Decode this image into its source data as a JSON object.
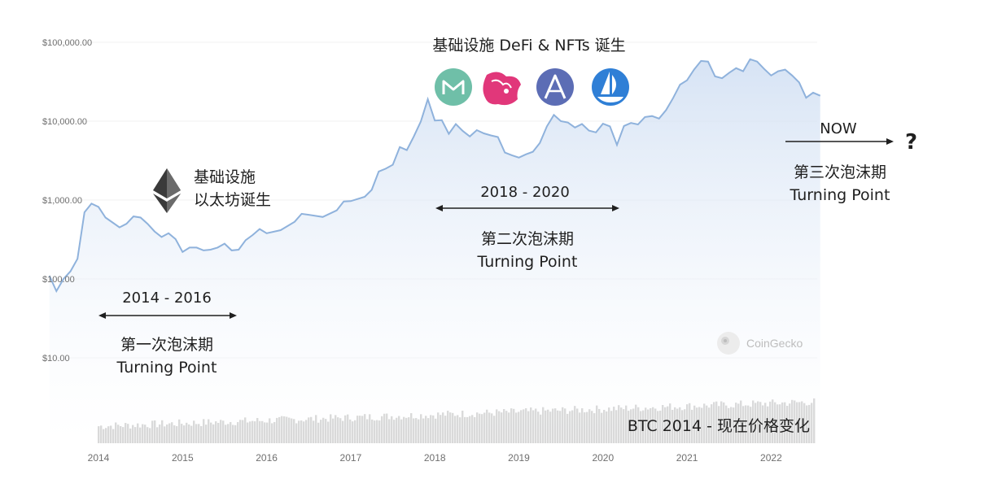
{
  "chart_data": {
    "type": "line",
    "title": "",
    "y_scale": "log",
    "ylim": [
      10,
      100000
    ],
    "y_ticks": [
      {
        "value": 100000,
        "label": "$100,000.00"
      },
      {
        "value": 10000,
        "label": "$10,000.00"
      },
      {
        "value": 1000,
        "label": "$1,000.00"
      },
      {
        "value": 100,
        "label": "$100.00"
      },
      {
        "value": 10,
        "label": "$10.00"
      }
    ],
    "x_ticks": [
      "2014",
      "2015",
      "2016",
      "2017",
      "2018",
      "2019",
      "2020",
      "2021",
      "2022"
    ],
    "xlim": [
      "2013-06",
      "2022-08"
    ],
    "series": [
      {
        "name": "",
        "points": [
          [
            "2013-06",
            110
          ],
          [
            "2013-07",
            70
          ],
          [
            "2013-08",
            100
          ],
          [
            "2013-09",
            125
          ],
          [
            "2013-10",
            180
          ],
          [
            "2013-11",
            700
          ],
          [
            "2013-12",
            900
          ],
          [
            "2014-01",
            820
          ],
          [
            "2014-02",
            600
          ],
          [
            "2014-03",
            520
          ],
          [
            "2014-04",
            450
          ],
          [
            "2014-05",
            500
          ],
          [
            "2014-06",
            620
          ],
          [
            "2014-07",
            600
          ],
          [
            "2014-08",
            500
          ],
          [
            "2014-09",
            400
          ],
          [
            "2014-10",
            340
          ],
          [
            "2014-11",
            380
          ],
          [
            "2014-12",
            320
          ],
          [
            "2015-01",
            220
          ],
          [
            "2015-02",
            250
          ],
          [
            "2015-03",
            250
          ],
          [
            "2015-04",
            230
          ],
          [
            "2015-05",
            235
          ],
          [
            "2015-06",
            250
          ],
          [
            "2015-07",
            280
          ],
          [
            "2015-08",
            230
          ],
          [
            "2015-09",
            235
          ],
          [
            "2015-10",
            310
          ],
          [
            "2015-11",
            360
          ],
          [
            "2015-12",
            430
          ],
          [
            "2016-01",
            380
          ],
          [
            "2016-03",
            415
          ],
          [
            "2016-05",
            530
          ],
          [
            "2016-06",
            670
          ],
          [
            "2016-07",
            650
          ],
          [
            "2016-09",
            610
          ],
          [
            "2016-11",
            740
          ],
          [
            "2016-12",
            960
          ],
          [
            "2017-01",
            970
          ],
          [
            "2017-03",
            1100
          ],
          [
            "2017-04",
            1350
          ],
          [
            "2017-05",
            2300
          ],
          [
            "2017-06",
            2500
          ],
          [
            "2017-07",
            2800
          ],
          [
            "2017-08",
            4700
          ],
          [
            "2017-09",
            4300
          ],
          [
            "2017-10",
            6400
          ],
          [
            "2017-11",
            9900
          ],
          [
            "2017-12",
            19000
          ],
          [
            "2018-01",
            10200
          ],
          [
            "2018-02",
            10300
          ],
          [
            "2018-03",
            6900
          ],
          [
            "2018-04",
            9200
          ],
          [
            "2018-05",
            7500
          ],
          [
            "2018-06",
            6400
          ],
          [
            "2018-07",
            7700
          ],
          [
            "2018-08",
            7000
          ],
          [
            "2018-09",
            6600
          ],
          [
            "2018-10",
            6300
          ],
          [
            "2018-11",
            4000
          ],
          [
            "2018-12",
            3700
          ],
          [
            "2019-01",
            3450
          ],
          [
            "2019-02",
            3800
          ],
          [
            "2019-03",
            4100
          ],
          [
            "2019-04",
            5300
          ],
          [
            "2019-05",
            8600
          ],
          [
            "2019-06",
            12000
          ],
          [
            "2019-07",
            10000
          ],
          [
            "2019-08",
            9600
          ],
          [
            "2019-09",
            8300
          ],
          [
            "2019-10",
            9200
          ],
          [
            "2019-11",
            7600
          ],
          [
            "2019-12",
            7200
          ],
          [
            "2020-01",
            9300
          ],
          [
            "2020-02",
            8600
          ],
          [
            "2020-03",
            5000
          ],
          [
            "2020-04",
            8700
          ],
          [
            "2020-05",
            9500
          ],
          [
            "2020-06",
            9100
          ],
          [
            "2020-07",
            11300
          ],
          [
            "2020-08",
            11600
          ],
          [
            "2020-09",
            10800
          ],
          [
            "2020-10",
            13800
          ],
          [
            "2020-11",
            19600
          ],
          [
            "2020-12",
            29000
          ],
          [
            "2021-01",
            33000
          ],
          [
            "2021-02",
            45000
          ],
          [
            "2021-03",
            58000
          ],
          [
            "2021-04",
            57000
          ],
          [
            "2021-05",
            37000
          ],
          [
            "2021-06",
            35000
          ],
          [
            "2021-07",
            41000
          ],
          [
            "2021-08",
            47000
          ],
          [
            "2021-09",
            43000
          ],
          [
            "2021-10",
            61000
          ],
          [
            "2021-11",
            57000
          ],
          [
            "2021-12",
            46000
          ],
          [
            "2022-01",
            38000
          ],
          [
            "2022-02",
            43000
          ],
          [
            "2022-03",
            45000
          ],
          [
            "2022-04",
            38000
          ],
          [
            "2022-05",
            31000
          ],
          [
            "2022-06",
            19800
          ],
          [
            "2022-07",
            23000
          ],
          [
            "2022-08",
            21000
          ]
        ]
      }
    ],
    "volume_label": "BTC 2014 - 现在价格变化",
    "watermark": "CoinGecko",
    "colors": {
      "line": "#8fb2dc",
      "area_top": "#c9daf1",
      "area_bottom": "#ffffff",
      "volume": "#cfcfcf",
      "text": "#1f1f1f",
      "axis_text": "#6f6f6f"
    }
  },
  "annotations": {
    "eth": {
      "line1": "基础设施",
      "line2": "以太坊诞生"
    },
    "defi": {
      "title": "基础设施 DeFi & NFTs 诞生"
    },
    "cycle1": {
      "years": "2014 - 2016",
      "name": "第一次泡沫期",
      "tp": "Turning Point"
    },
    "cycle2": {
      "years": "2018 - 2020",
      "name": "第二次泡沫期",
      "tp": "Turning Point"
    },
    "cycle3": {
      "now": "NOW",
      "question": "?",
      "name": "第三次泡沫期",
      "tp": "Turning Point"
    }
  },
  "icons": [
    "ethereum-icon",
    "maker-icon",
    "uniswap-icon",
    "aave-icon",
    "opensea-icon"
  ]
}
